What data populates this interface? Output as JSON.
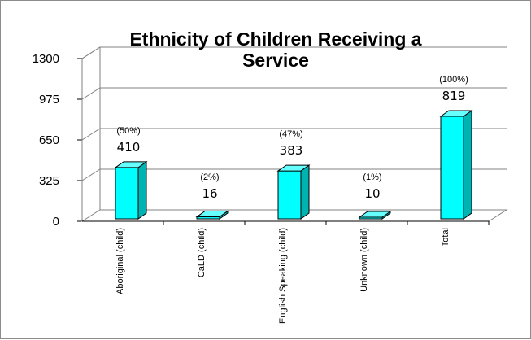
{
  "chart_data": {
    "type": "bar",
    "title_lines": [
      "Ethnicity of Children Receiving a",
      "Service"
    ],
    "categories": [
      "Aboriginal (child)",
      "CaLD (child)",
      "English Speaking (child)",
      "Unknown (child)",
      "Total"
    ],
    "values": [
      410,
      16,
      383,
      10,
      819
    ],
    "percent_labels": [
      "(50%)",
      "(2%)",
      "(47%)",
      "(1%)",
      "(100%)"
    ],
    "yticks": [
      0,
      325,
      650,
      975,
      1300
    ],
    "ylim": [
      0,
      1300
    ],
    "grid": true,
    "legend": "none",
    "three_d": true,
    "colors": {
      "bar_front": "#00ffff",
      "bar_side": "#00b3b3",
      "bar_top": "#66ffff",
      "bar_outline": "#000000",
      "grid": "#808080"
    }
  }
}
